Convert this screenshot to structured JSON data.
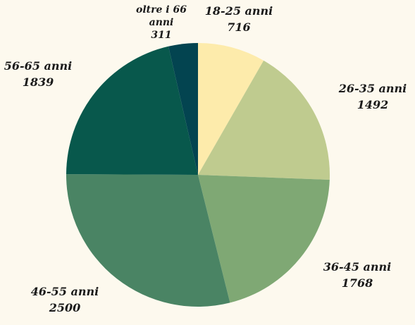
{
  "chart_data": {
    "type": "pie",
    "title": "",
    "categories": [
      "18-25 anni",
      "26-35 anni",
      "36-45 anni",
      "46-55 anni",
      "56-65 anni",
      "oltre i 66 anni"
    ],
    "values": [
      716,
      1492,
      1768,
      2500,
      1839,
      311
    ],
    "labels": [
      {
        "name": "18-25 anni",
        "value": "716"
      },
      {
        "name": "26-35 anni",
        "value": "1492"
      },
      {
        "name": "36-45 anni",
        "value": "1768"
      },
      {
        "name": "46-55 anni",
        "value": "2500"
      },
      {
        "name": "56-65 anni",
        "value": "1839"
      },
      {
        "name": "oltre i 66 anni",
        "value": "311"
      }
    ],
    "colors": [
      "#fdebab",
      "#bfcb8f",
      "#7fa874",
      "#4a8464",
      "#08584c",
      "#034450"
    ],
    "start_angle": "12 o'clock",
    "direction": "clockwise",
    "legend": "none",
    "background": "#fdf9ee"
  }
}
